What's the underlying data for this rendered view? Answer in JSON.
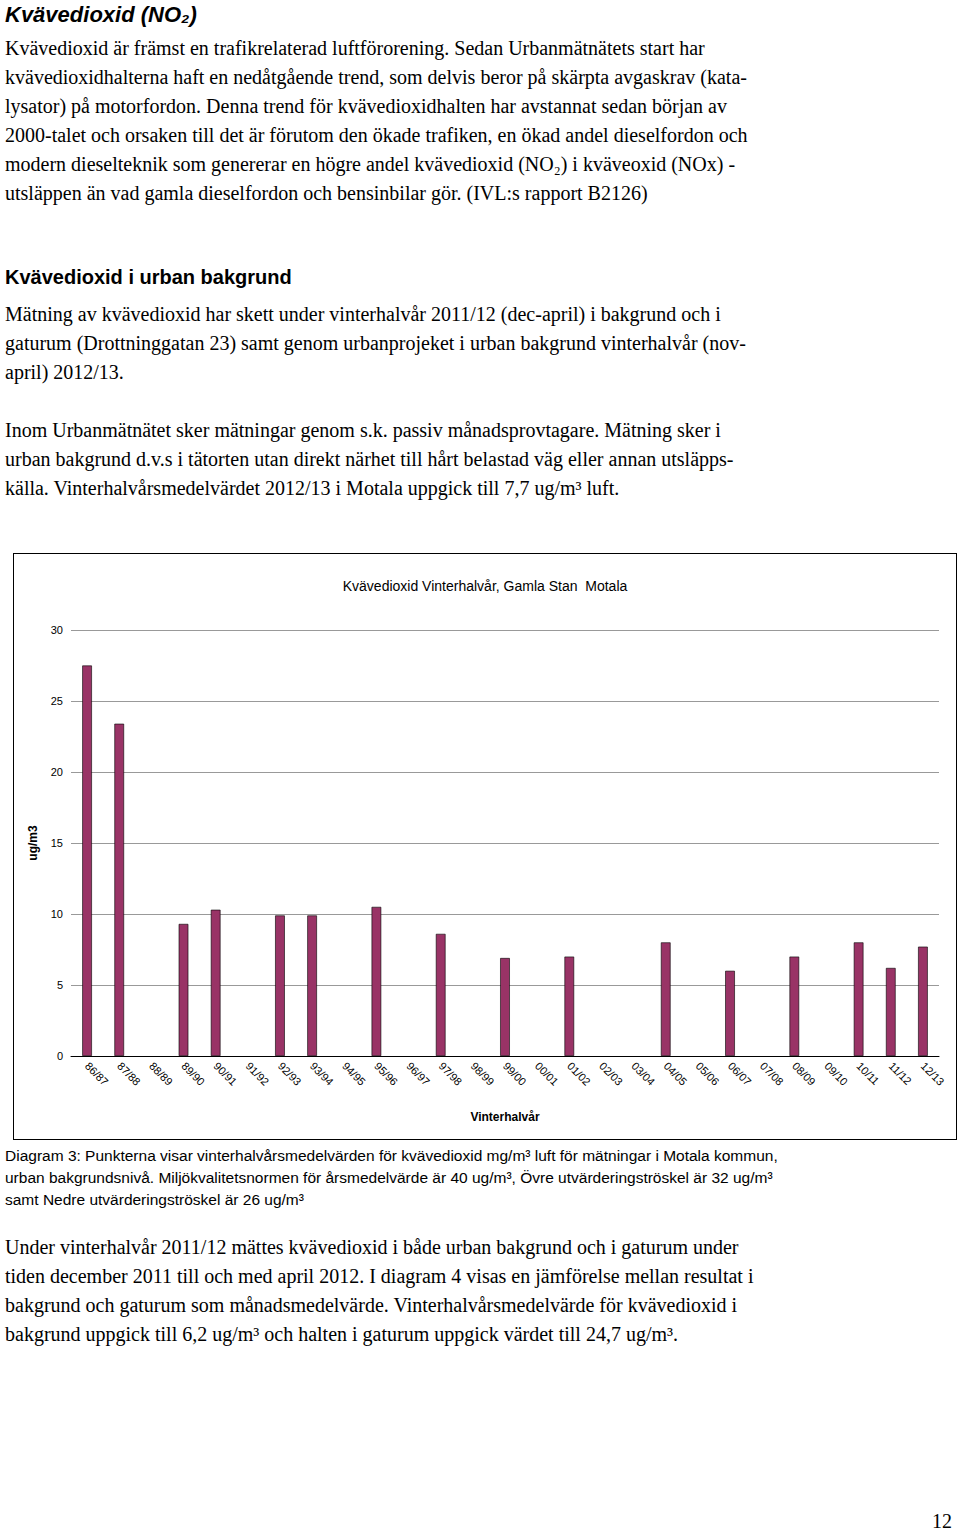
{
  "heading": "Kvävedioxid (NO₂)",
  "intro": [
    "Kvävedioxid är främst en trafikrelaterad luftförorening. Sedan Urbanmätnätets start har",
    "kvävedioxidhalterna haft en nedåtgående trend, som delvis beror på skärpta avgaskrav (kata-",
    "lysator) på motorfordon. Denna trend för kvävedioxidhalten har avstannat sedan början av",
    "2000-talet och orsaken till det är förutom den ökade trafiken, en ökad andel dieselfordon och",
    "modern dieselteknik som genererar en högre andel kvävedioxid (NO₂) i kväveoxid (NOx) -",
    "utsläppen än vad gamla dieselfordon och bensinbilar gör. (IVL:s rapport B2126)"
  ],
  "section_title": "Kvävedioxid i urban bakgrund",
  "paragraphs": [
    [
      "Mätning av kvävedioxid har skett under vinterhalvår 2011/12 (dec-april) i bakgrund och i",
      "gaturum (Drottninggatan 23) samt genom urbanprojeket i urban bakgrund vinterhalvår (nov-",
      "april) 2012/13."
    ],
    [
      "Inom Urbanmätnätet sker mätningar genom s.k. passiv månadsprovtagare. Mätning sker i",
      "urban bakgrund d.v.s i tätorten utan direkt närhet till hårt belastad väg eller annan utsläpps-",
      "källa. Vinterhalvårsmedelvärdet 2012/13 i Motala uppgick till 7,7 ug/m³ luft."
    ]
  ],
  "chart_data": {
    "type": "bar",
    "title": "Kvävedioxid Vinterhalvår, Gamla Stan  Motala",
    "x_label": "Vinterhalvår",
    "y_label": "ug/m3",
    "categories": [
      "86/87",
      "87/88",
      "88/89",
      "89/90",
      "90/91",
      "91/92",
      "92/93",
      "93/94",
      "94/95",
      "95/96",
      "96/97",
      "97/98",
      "98/99",
      "99/00",
      "00/01",
      "01/02",
      "02/03",
      "03/04",
      "04/05",
      "05/06",
      "06/07",
      "07/08",
      "08/09",
      "09/10",
      "10/11",
      "11/12",
      "12/13"
    ],
    "values": [
      27.5,
      23.4,
      null,
      9.3,
      10.3,
      null,
      9.9,
      9.9,
      null,
      10.5,
      null,
      8.6,
      null,
      6.9,
      null,
      7.0,
      null,
      null,
      8.0,
      null,
      6.0,
      null,
      7.0,
      null,
      8.0,
      6.2,
      7.7
    ],
    "color": "#993366",
    "ylim": [
      0,
      30
    ],
    "yticks": [
      0,
      5,
      10,
      15,
      20,
      25,
      30
    ],
    "grid": true
  },
  "caption": [
    "Diagram 3: Punkterna visar vinterhalvårsmedelvärden för kvävedioxid mg/m³ luft för mätningar i Motala kommun,",
    "urban bakgrundsnivå. Miljökvalitetsnormen för årsmedelvärde är 40 ug/m³, Övre utvärderingströskel är 32 ug/m³",
    "samt Nedre utvärderingströskel är 26 ug/m³"
  ],
  "after_text": [
    "Under vinterhalvår 2011/12 mättes kvävedioxid i både urban bakgrund och i gaturum under",
    "tiden december 2011 till och med april 2012. I diagram 4 visas en jämförelse mellan resultat i",
    "bakgrund och gaturum som månadsmedelvärde. Vinterhalvårsmedelvärde för kvävedioxid i",
    "bakgrund uppgick till 6,2 ug/m³ och halten i gaturum uppgick värdet till 24,7 ug/m³."
  ],
  "page_number": "12"
}
